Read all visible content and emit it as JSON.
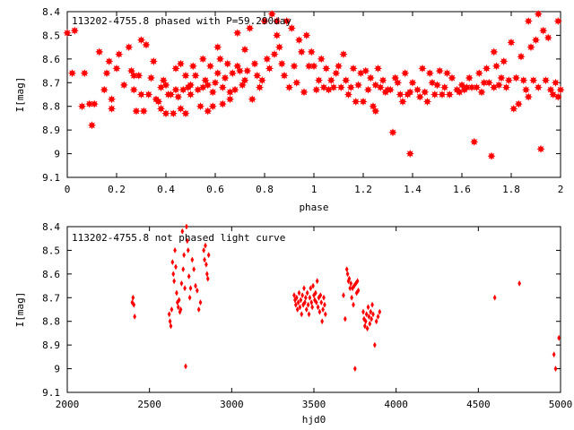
{
  "chart_data": [
    {
      "type": "scatter",
      "title": "113202-4755.8 phased with P=59.290day",
      "xlabel": "phase",
      "ylabel": "I[mag]",
      "xlim": [
        0,
        2
      ],
      "ylim": [
        8.4,
        9.1
      ],
      "y_inverted": true,
      "x_ticks": [
        0,
        0.2,
        0.4,
        0.6,
        0.8,
        1,
        1.2,
        1.4,
        1.6,
        1.8,
        2
      ],
      "x_tick_labels": [
        "0",
        "0.2",
        "0.4",
        "0.6",
        "0.8",
        "1",
        "1.2",
        "1.4",
        "1.6",
        "1.8",
        "2"
      ],
      "y_ticks": [
        8.4,
        8.5,
        8.6,
        8.7,
        8.8,
        8.9,
        9.0,
        9.1
      ],
      "y_tick_labels": [
        "8.4",
        "8.5",
        "8.6",
        "8.7",
        "8.8",
        "8.9",
        "9",
        "9.1"
      ],
      "marker_color": "#ff0000",
      "marker": "filled-star",
      "points": [
        [
          0.0,
          8.49
        ],
        [
          0.03,
          8.48
        ],
        [
          0.02,
          8.66
        ],
        [
          0.06,
          8.8
        ],
        [
          0.07,
          8.66
        ],
        [
          0.09,
          8.79
        ],
        [
          0.1,
          8.88
        ],
        [
          0.11,
          8.79
        ],
        [
          0.13,
          8.57
        ],
        [
          0.15,
          8.73
        ],
        [
          0.16,
          8.66
        ],
        [
          0.17,
          8.61
        ],
        [
          0.18,
          8.77
        ],
        [
          0.18,
          8.81
        ],
        [
          0.2,
          8.64
        ],
        [
          0.21,
          8.58
        ],
        [
          0.23,
          8.71
        ],
        [
          0.25,
          8.55
        ],
        [
          0.26,
          8.65
        ],
        [
          0.27,
          8.67
        ],
        [
          0.27,
          8.73
        ],
        [
          0.28,
          8.82
        ],
        [
          0.29,
          8.67
        ],
        [
          0.3,
          8.75
        ],
        [
          0.3,
          8.52
        ],
        [
          0.31,
          8.82
        ],
        [
          0.32,
          8.54
        ],
        [
          0.33,
          8.75
        ],
        [
          0.34,
          8.68
        ],
        [
          0.35,
          8.61
        ],
        [
          0.36,
          8.77
        ],
        [
          0.37,
          8.78
        ],
        [
          0.38,
          8.72
        ],
        [
          0.38,
          8.81
        ],
        [
          0.39,
          8.69
        ],
        [
          0.4,
          8.71
        ],
        [
          0.4,
          8.83
        ],
        [
          0.41,
          8.75
        ],
        [
          0.42,
          8.75
        ],
        [
          0.43,
          8.83
        ],
        [
          0.44,
          8.64
        ],
        [
          0.44,
          8.73
        ],
        [
          0.45,
          8.76
        ],
        [
          0.46,
          8.62
        ],
        [
          0.46,
          8.81
        ],
        [
          0.47,
          8.73
        ],
        [
          0.48,
          8.67
        ],
        [
          0.48,
          8.83
        ],
        [
          0.49,
          8.72
        ],
        [
          0.5,
          8.71
        ],
        [
          0.5,
          8.75
        ],
        [
          0.51,
          8.63
        ],
        [
          0.52,
          8.67
        ],
        [
          0.53,
          8.73
        ],
        [
          0.54,
          8.8
        ],
        [
          0.55,
          8.72
        ],
        [
          0.55,
          8.6
        ],
        [
          0.56,
          8.69
        ],
        [
          0.57,
          8.82
        ],
        [
          0.57,
          8.71
        ],
        [
          0.58,
          8.63
        ],
        [
          0.59,
          8.74
        ],
        [
          0.59,
          8.8
        ],
        [
          0.6,
          8.7
        ],
        [
          0.61,
          8.66
        ],
        [
          0.61,
          8.55
        ],
        [
          0.62,
          8.6
        ],
        [
          0.63,
          8.79
        ],
        [
          0.63,
          8.72
        ],
        [
          0.64,
          8.68
        ],
        [
          0.65,
          8.62
        ],
        [
          0.66,
          8.77
        ],
        [
          0.66,
          8.74
        ],
        [
          0.67,
          8.66
        ],
        [
          0.68,
          8.73
        ],
        [
          0.69,
          8.63
        ],
        [
          0.69,
          8.49
        ],
        [
          0.7,
          8.65
        ],
        [
          0.71,
          8.71
        ],
        [
          0.72,
          8.56
        ],
        [
          0.72,
          8.69
        ],
        [
          0.73,
          8.65
        ],
        [
          0.74,
          8.47
        ],
        [
          0.75,
          8.77
        ],
        [
          0.76,
          8.62
        ],
        [
          0.77,
          8.67
        ],
        [
          0.78,
          8.72
        ],
        [
          0.79,
          8.69
        ],
        [
          0.8,
          8.44
        ],
        [
          0.81,
          8.6
        ],
        [
          0.82,
          8.64
        ],
        [
          0.83,
          8.41
        ],
        [
          0.84,
          8.58
        ],
        [
          0.85,
          8.5
        ],
        [
          0.85,
          8.44
        ],
        [
          0.86,
          8.55
        ],
        [
          0.87,
          8.62
        ],
        [
          0.88,
          8.67
        ],
        [
          0.89,
          8.44
        ],
        [
          0.9,
          8.72
        ],
        [
          0.91,
          8.47
        ],
        [
          0.92,
          8.63
        ],
        [
          0.93,
          8.7
        ],
        [
          0.94,
          8.52
        ],
        [
          0.95,
          8.57
        ],
        [
          0.96,
          8.74
        ],
        [
          0.97,
          8.5
        ],
        [
          0.98,
          8.63
        ],
        [
          0.99,
          8.57
        ],
        [
          1.0,
          8.63
        ],
        [
          1.01,
          8.73
        ],
        [
          1.02,
          8.69
        ],
        [
          1.03,
          8.6
        ],
        [
          1.04,
          8.72
        ],
        [
          1.05,
          8.64
        ],
        [
          1.06,
          8.73
        ],
        [
          1.07,
          8.69
        ],
        [
          1.08,
          8.72
        ],
        [
          1.09,
          8.66
        ],
        [
          1.1,
          8.63
        ],
        [
          1.11,
          8.72
        ],
        [
          1.12,
          8.58
        ],
        [
          1.13,
          8.69
        ],
        [
          1.14,
          8.75
        ],
        [
          1.15,
          8.72
        ],
        [
          1.16,
          8.64
        ],
        [
          1.17,
          8.78
        ],
        [
          1.18,
          8.71
        ],
        [
          1.19,
          8.66
        ],
        [
          1.2,
          8.78
        ],
        [
          1.21,
          8.65
        ],
        [
          1.22,
          8.73
        ],
        [
          1.23,
          8.68
        ],
        [
          1.24,
          8.8
        ],
        [
          1.25,
          8.71
        ],
        [
          1.25,
          8.82
        ],
        [
          1.26,
          8.64
        ],
        [
          1.27,
          8.72
        ],
        [
          1.28,
          8.69
        ],
        [
          1.29,
          8.74
        ],
        [
          1.3,
          8.73
        ],
        [
          1.31,
          8.73
        ],
        [
          1.32,
          8.91
        ],
        [
          1.33,
          8.68
        ],
        [
          1.34,
          8.7
        ],
        [
          1.35,
          8.75
        ],
        [
          1.36,
          8.78
        ],
        [
          1.37,
          8.66
        ],
        [
          1.38,
          8.75
        ],
        [
          1.39,
          8.74
        ],
        [
          1.39,
          9.0
        ],
        [
          1.4,
          8.7
        ],
        [
          1.42,
          8.73
        ],
        [
          1.43,
          8.76
        ],
        [
          1.44,
          8.64
        ],
        [
          1.45,
          8.74
        ],
        [
          1.46,
          8.78
        ],
        [
          1.47,
          8.66
        ],
        [
          1.48,
          8.7
        ],
        [
          1.49,
          8.75
        ],
        [
          1.5,
          8.71
        ],
        [
          1.51,
          8.65
        ],
        [
          1.52,
          8.75
        ],
        [
          1.53,
          8.72
        ],
        [
          1.54,
          8.66
        ],
        [
          1.55,
          8.75
        ],
        [
          1.56,
          8.68
        ],
        [
          1.58,
          8.73
        ],
        [
          1.59,
          8.74
        ],
        [
          1.6,
          8.71
        ],
        [
          1.61,
          8.73
        ],
        [
          1.62,
          8.72
        ],
        [
          1.63,
          8.68
        ],
        [
          1.64,
          8.72
        ],
        [
          1.65,
          8.95
        ],
        [
          1.66,
          8.72
        ],
        [
          1.67,
          8.66
        ],
        [
          1.68,
          8.74
        ],
        [
          1.69,
          8.7
        ],
        [
          1.7,
          8.64
        ],
        [
          1.71,
          8.7
        ],
        [
          1.72,
          9.01
        ],
        [
          1.73,
          8.72
        ],
        [
          1.73,
          8.57
        ],
        [
          1.74,
          8.63
        ],
        [
          1.75,
          8.71
        ],
        [
          1.76,
          8.68
        ],
        [
          1.77,
          8.61
        ],
        [
          1.78,
          8.72
        ],
        [
          1.79,
          8.69
        ],
        [
          1.8,
          8.53
        ],
        [
          1.81,
          8.81
        ],
        [
          1.82,
          8.68
        ],
        [
          1.83,
          8.79
        ],
        [
          1.84,
          8.59
        ],
        [
          1.85,
          8.69
        ],
        [
          1.86,
          8.73
        ],
        [
          1.87,
          8.44
        ],
        [
          1.87,
          8.76
        ],
        [
          1.88,
          8.55
        ],
        [
          1.89,
          8.69
        ],
        [
          1.9,
          8.52
        ],
        [
          1.91,
          8.72
        ],
        [
          1.91,
          8.41
        ],
        [
          1.92,
          8.98
        ],
        [
          1.93,
          8.48
        ],
        [
          1.94,
          8.69
        ],
        [
          1.95,
          8.51
        ],
        [
          1.96,
          8.73
        ],
        [
          1.97,
          8.75
        ],
        [
          1.98,
          8.7
        ],
        [
          1.99,
          8.76
        ],
        [
          1.99,
          8.44
        ],
        [
          2.0,
          8.73
        ]
      ]
    },
    {
      "type": "scatter",
      "title": "113202-4755.8 not phased light curve",
      "xlabel": "hjd0",
      "ylabel": "I[mag]",
      "xlim": [
        2000,
        5000
      ],
      "ylim": [
        8.4,
        9.1
      ],
      "y_inverted": true,
      "x_ticks": [
        2000,
        2500,
        3000,
        3500,
        4000,
        4500,
        5000
      ],
      "x_tick_labels": [
        "2000",
        "2500",
        "3000",
        "3500",
        "4000",
        "4500",
        "5000"
      ],
      "y_ticks": [
        8.4,
        8.5,
        8.6,
        8.7,
        8.8,
        8.9,
        9.0,
        9.1
      ],
      "y_tick_labels": [
        "8.4",
        "8.5",
        "8.6",
        "8.7",
        "8.8",
        "8.9",
        "9",
        "9.1"
      ],
      "marker_color": "#ff0000",
      "marker": "small-diamond",
      "points": [
        [
          2395,
          8.72
        ],
        [
          2400,
          8.7
        ],
        [
          2405,
          8.73
        ],
        [
          2410,
          8.78
        ],
        [
          2620,
          8.77
        ],
        [
          2625,
          8.8
        ],
        [
          2630,
          8.82
        ],
        [
          2635,
          8.75
        ],
        [
          2640,
          8.55
        ],
        [
          2645,
          8.6
        ],
        [
          2650,
          8.63
        ],
        [
          2655,
          8.5
        ],
        [
          2660,
          8.57
        ],
        [
          2665,
          8.68
        ],
        [
          2670,
          8.72
        ],
        [
          2675,
          8.74
        ],
        [
          2680,
          8.71
        ],
        [
          2685,
          8.76
        ],
        [
          2690,
          8.75
        ],
        [
          2695,
          8.64
        ],
        [
          2700,
          8.42
        ],
        [
          2705,
          8.58
        ],
        [
          2710,
          8.52
        ],
        [
          2715,
          8.66
        ],
        [
          2720,
          8.99
        ],
        [
          2725,
          8.4
        ],
        [
          2730,
          8.46
        ],
        [
          2735,
          8.5
        ],
        [
          2740,
          8.61
        ],
        [
          2745,
          8.7
        ],
        [
          2750,
          8.66
        ],
        [
          2760,
          8.54
        ],
        [
          2770,
          8.58
        ],
        [
          2780,
          8.65
        ],
        [
          2790,
          8.67
        ],
        [
          2800,
          8.75
        ],
        [
          2810,
          8.72
        ],
        [
          2830,
          8.5
        ],
        [
          2835,
          8.54
        ],
        [
          2840,
          8.48
        ],
        [
          2845,
          8.56
        ],
        [
          2850,
          8.6
        ],
        [
          2855,
          8.62
        ],
        [
          2860,
          8.52
        ],
        [
          3380,
          8.69
        ],
        [
          3385,
          8.71
        ],
        [
          3390,
          8.73
        ],
        [
          3395,
          8.7
        ],
        [
          3400,
          8.75
        ],
        [
          3405,
          8.72
        ],
        [
          3410,
          8.68
        ],
        [
          3415,
          8.74
        ],
        [
          3420,
          8.71
        ],
        [
          3425,
          8.77
        ],
        [
          3430,
          8.69
        ],
        [
          3435,
          8.73
        ],
        [
          3440,
          8.66
        ],
        [
          3445,
          8.72
        ],
        [
          3450,
          8.7
        ],
        [
          3455,
          8.75
        ],
        [
          3460,
          8.68
        ],
        [
          3465,
          8.73
        ],
        [
          3470,
          8.77
        ],
        [
          3475,
          8.7
        ],
        [
          3480,
          8.66
        ],
        [
          3485,
          8.72
        ],
        [
          3490,
          8.74
        ],
        [
          3495,
          8.65
        ],
        [
          3500,
          8.69
        ],
        [
          3505,
          8.71
        ],
        [
          3510,
          8.68
        ],
        [
          3515,
          8.72
        ],
        [
          3520,
          8.63
        ],
        [
          3525,
          8.74
        ],
        [
          3530,
          8.7
        ],
        [
          3535,
          8.76
        ],
        [
          3540,
          8.69
        ],
        [
          3545,
          8.72
        ],
        [
          3550,
          8.8
        ],
        [
          3555,
          8.75
        ],
        [
          3560,
          8.7
        ],
        [
          3565,
          8.73
        ],
        [
          3570,
          8.77
        ],
        [
          3680,
          8.69
        ],
        [
          3690,
          8.79
        ],
        [
          3700,
          8.58
        ],
        [
          3705,
          8.6
        ],
        [
          3710,
          8.63
        ],
        [
          3715,
          8.62
        ],
        [
          3720,
          8.66
        ],
        [
          3725,
          8.64
        ],
        [
          3730,
          8.7
        ],
        [
          3735,
          8.66
        ],
        [
          3740,
          8.73
        ],
        [
          3745,
          8.65
        ],
        [
          3750,
          9.0
        ],
        [
          3755,
          8.64
        ],
        [
          3760,
          8.68
        ],
        [
          3765,
          8.63
        ],
        [
          3770,
          8.67
        ],
        [
          3800,
          8.76
        ],
        [
          3805,
          8.79
        ],
        [
          3810,
          8.82
        ],
        [
          3815,
          8.8
        ],
        [
          3820,
          8.77
        ],
        [
          3825,
          8.83
        ],
        [
          3830,
          8.74
        ],
        [
          3835,
          8.78
        ],
        [
          3840,
          8.81
        ],
        [
          3845,
          8.76
        ],
        [
          3850,
          8.79
        ],
        [
          3855,
          8.73
        ],
        [
          3860,
          8.77
        ],
        [
          3870,
          8.9
        ],
        [
          3880,
          8.8
        ],
        [
          3890,
          8.78
        ],
        [
          3900,
          8.76
        ],
        [
          4600,
          8.7
        ],
        [
          4750,
          8.64
        ],
        [
          4960,
          8.94
        ],
        [
          4970,
          9.0
        ],
        [
          4990,
          8.87
        ]
      ]
    }
  ]
}
